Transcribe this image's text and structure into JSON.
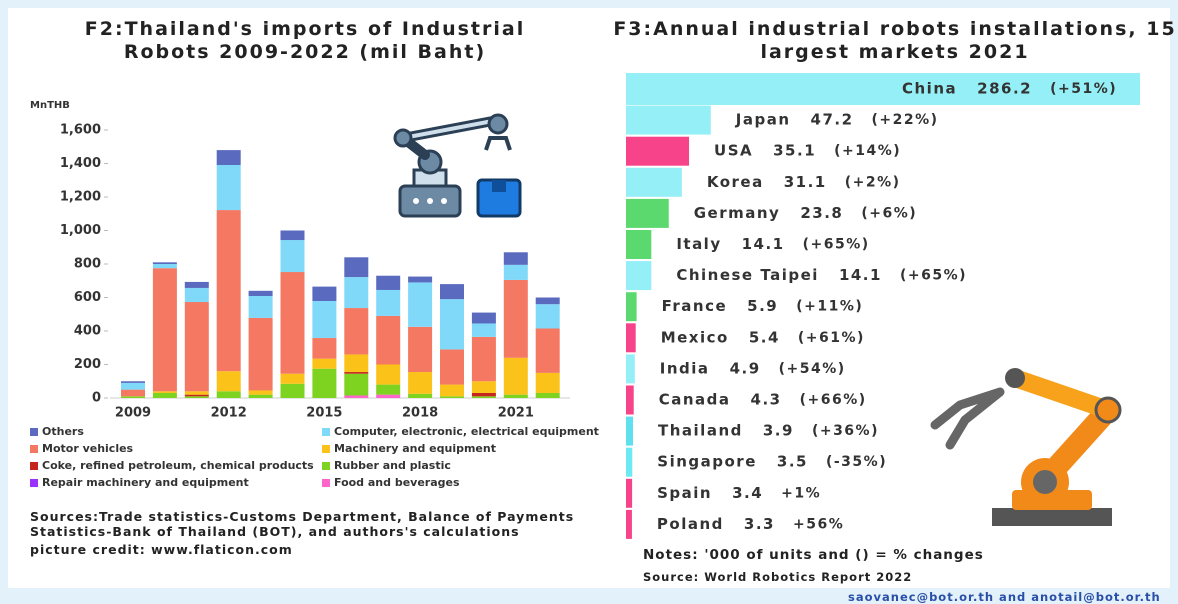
{
  "chart_data": [
    {
      "type": "bar",
      "stacked": true,
      "title": "F2:Thailand's imports of Industrial Robots 2009-2022 (mil Baht)",
      "y_label": "MnTHB",
      "categories": [
        "2009",
        null,
        null,
        "2012",
        null,
        null,
        "2015",
        null,
        null,
        "2018",
        null,
        null,
        "2021",
        null
      ],
      "series": [
        {
          "name": "Others",
          "color": "#5a6bbf",
          "values": [
            10,
            10,
            36,
            89,
            31,
            57,
            86,
            118,
            85,
            35,
            90,
            65,
            75,
            40
          ]
        },
        {
          "name": "Computer, electronic, electrical equipment",
          "color": "#80d9f9",
          "values": [
            40,
            25,
            84,
            269,
            131,
            191,
            221,
            185,
            155,
            265,
            300,
            80,
            90,
            145
          ]
        },
        {
          "name": "Motor vehicles",
          "color": "#f47862",
          "values": [
            40,
            735,
            533,
            962,
            433,
            607,
            123,
            277,
            290,
            270,
            210,
            265,
            465,
            265
          ]
        },
        {
          "name": "Machinery and equipment",
          "color": "#fbc21a",
          "values": [
            0,
            10,
            20,
            120,
            25,
            60,
            60,
            105,
            120,
            130,
            70,
            70,
            220,
            120
          ]
        },
        {
          "name": "Coke, refined petroleum, chemical products",
          "color": "#c4261d",
          "values": [
            0,
            0,
            10,
            0,
            0,
            0,
            0,
            10,
            0,
            0,
            0,
            20,
            0,
            0
          ]
        },
        {
          "name": "Rubber and plastic",
          "color": "#7ed321",
          "values": [
            10,
            30,
            10,
            40,
            20,
            85,
            175,
            130,
            60,
            25,
            10,
            10,
            20,
            30
          ]
        },
        {
          "name": "Repair machinery and equipment",
          "color": "#9b30ff",
          "values": [
            0,
            0,
            0,
            0,
            0,
            0,
            0,
            0,
            0,
            0,
            0,
            0,
            0,
            0
          ]
        },
        {
          "name": "Food and beverages",
          "color": "#ff66cc",
          "values": [
            0,
            0,
            0,
            0,
            0,
            0,
            0,
            15,
            20,
            0,
            0,
            0,
            0,
            0
          ]
        }
      ],
      "ylim": [
        0,
        1600
      ],
      "yticks": [
        0,
        200,
        400,
        600,
        800,
        {
          "value": 1000,
          "label": "1,000"
        },
        {
          "value": 1200,
          "label": "1,200"
        },
        {
          "value": 1400,
          "label": "1,400"
        },
        {
          "value": 1600,
          "label": "1,600"
        }
      ],
      "grid": false
    },
    {
      "type": "barh",
      "title": "F3:Annual industrial robots installations, 15 largest markets 2021",
      "categories": [
        "China",
        "Japan",
        "USA",
        "Korea",
        "Germany",
        "Italy",
        "Chinese Taipei",
        "France",
        "Mexico",
        "India",
        "Canada",
        "Thailand",
        "Singapore",
        "Spain",
        "Poland"
      ],
      "values": [
        286.2,
        47.2,
        35.1,
        31.1,
        23.8,
        14.1,
        14.1,
        5.9,
        5.4,
        4.9,
        4.3,
        3.9,
        3.5,
        3.4,
        3.3
      ],
      "colors": [
        "#95eff6",
        "#95eff6",
        "#f7438a",
        "#95eff6",
        "#5bd96f",
        "#5bd96f",
        "#95eff6",
        "#5bd96f",
        "#f7438a",
        "#95eff6",
        "#f7438a",
        "#5fe0ee",
        "#6ee8f2",
        "#f7438a",
        "#f7438a"
      ],
      "changes": [
        "(+51%)",
        "(+22%)",
        "(+14%)",
        "(+2%)",
        "(+6%)",
        "(+65%)",
        "(+65%)",
        "(+11%)",
        "(+61%)",
        "(+54%)",
        "(+66%)",
        "(+36%)",
        "(-35%)",
        "+1%",
        "+56%"
      ]
    }
  ],
  "notes": {
    "left_source": "Sources:Trade statistics-Customs Department, Balance of Payments Statistics-Bank of Thailand (BOT), and authors's calculations",
    "credit": "picture credit: www.flaticon.com",
    "right_note": "Notes: '000 of units and () = % changes",
    "right_source": "Source: World Robotics Report 2022",
    "contact": "saovanec@bot.or.th and anotail@bot.or.th"
  }
}
